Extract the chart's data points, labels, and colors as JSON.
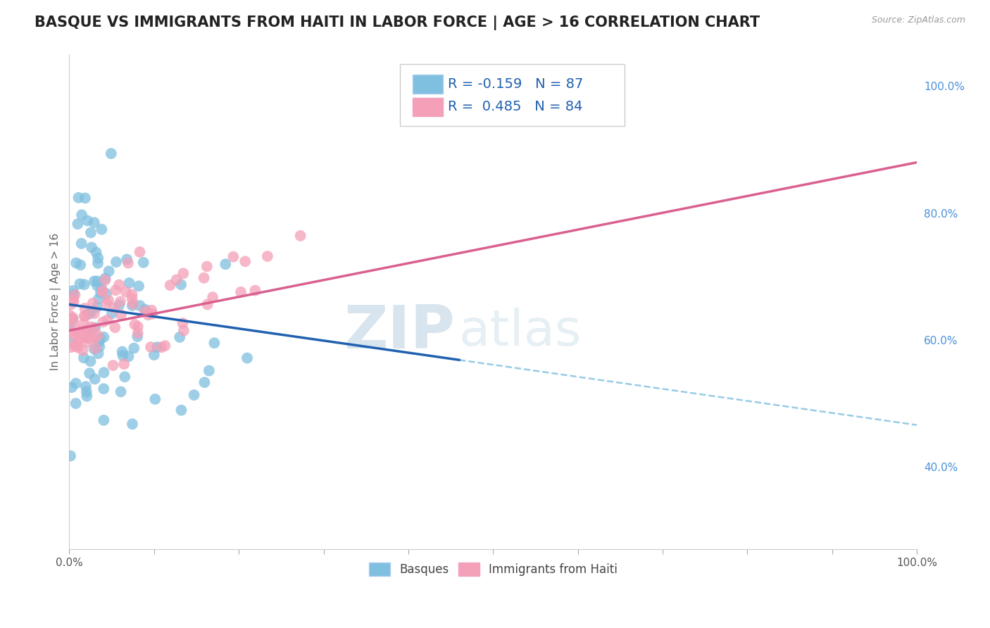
{
  "title": "BASQUE VS IMMIGRANTS FROM HAITI IN LABOR FORCE | AGE > 16 CORRELATION CHART",
  "source_text": "Source: ZipAtlas.com",
  "ylabel": "In Labor Force | Age > 16",
  "xlim": [
    0.0,
    1.0
  ],
  "ylim": [
    0.27,
    1.05
  ],
  "y_ticks_right": [
    0.4,
    0.6,
    0.8,
    1.0
  ],
  "y_tick_labels_right": [
    "40.0%",
    "60.0%",
    "80.0%",
    "100.0%"
  ],
  "legend_bottom_labels": [
    "Basques",
    "Immigrants from Haiti"
  ],
  "blue_color": "#7fbfdf",
  "pink_color": "#f4a0b8",
  "blue_line_color": "#2060b0",
  "blue_dash_color": "#7fbfdf",
  "pink_line_color": "#d96090",
  "R_blue": -0.159,
  "N_blue": 87,
  "R_pink": 0.485,
  "N_pink": 84,
  "title_fontsize": 15,
  "axis_fontsize": 11,
  "tick_fontsize": 11,
  "legend_fontsize": 14,
  "background_color": "#ffffff",
  "grid_color": "#d0d8e8",
  "seed_blue": 7,
  "seed_pink": 13
}
